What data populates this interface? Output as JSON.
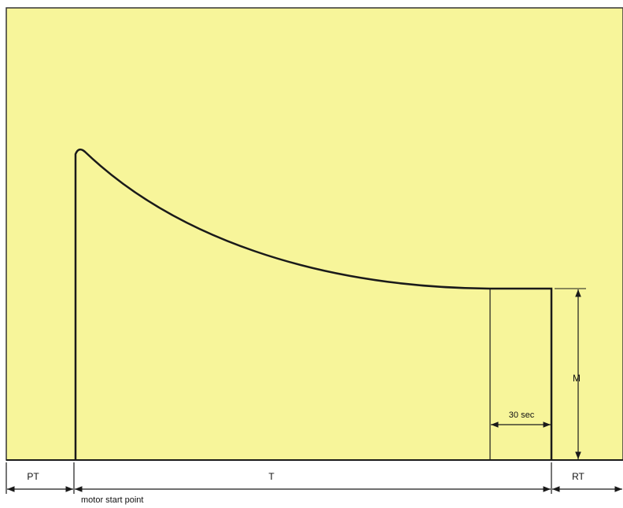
{
  "labels": {
    "pt": "PT",
    "t": "T",
    "rt": "RT",
    "m": "M",
    "duration": "30 sec",
    "start": "motor start point"
  }
}
